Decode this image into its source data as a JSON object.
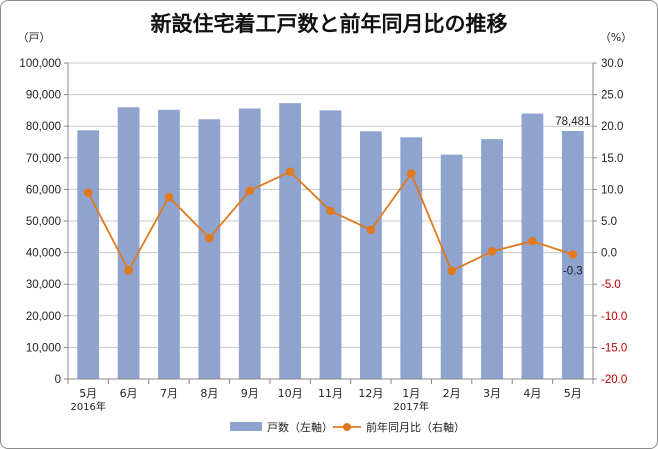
{
  "chart_data": {
    "type": "bar+line",
    "title": "新設住宅着工戸数と前年同月比の推移",
    "y_left_unit": "（戸）",
    "y_right_unit": "（%）",
    "categories": [
      "5月",
      "6月",
      "7月",
      "8月",
      "9月",
      "10月",
      "11月",
      "12月",
      "1月",
      "2月",
      "3月",
      "4月",
      "5月"
    ],
    "year_labels": [
      {
        "index": 0,
        "label": "2016年"
      },
      {
        "index": 8,
        "label": "2017年"
      }
    ],
    "ylim_left": [
      0,
      100000
    ],
    "ylim_right": [
      -20.0,
      30.0
    ],
    "left_ticks": [
      "0",
      "10,000",
      "20,000",
      "30,000",
      "40,000",
      "50,000",
      "60,000",
      "70,000",
      "80,000",
      "90,000",
      "100,000"
    ],
    "right_ticks": [
      "-20.0",
      "-15.0",
      "-10.0",
      "-5.0",
      "0.0",
      "5.0",
      "10.0",
      "15.0",
      "20.0",
      "25.0",
      "30.0"
    ],
    "series": [
      {
        "name": "戸数（左軸）",
        "type": "bar",
        "axis": "left",
        "color": "#8fa3cf",
        "values": [
          78700,
          86000,
          85200,
          82200,
          85600,
          87300,
          85000,
          78400,
          76500,
          71000,
          75900,
          84000,
          78481
        ]
      },
      {
        "name": "前年同月比（右軸）",
        "type": "line",
        "axis": "right",
        "color": "#e07a1f",
        "values": [
          9.5,
          -2.8,
          8.8,
          2.3,
          9.8,
          12.8,
          6.6,
          3.6,
          12.5,
          -2.9,
          0.2,
          1.8,
          -0.3
        ]
      }
    ],
    "data_labels": [
      {
        "series": 0,
        "index": 12,
        "text": "78,481"
      },
      {
        "series": 1,
        "index": 12,
        "text": "-0.3"
      }
    ],
    "grid": true,
    "legend": "bottom"
  },
  "colors": {
    "bar": "#8fa3cf",
    "line": "#e07a1f",
    "negative_tick": "#c00000",
    "grid": "#c8c8c8"
  }
}
